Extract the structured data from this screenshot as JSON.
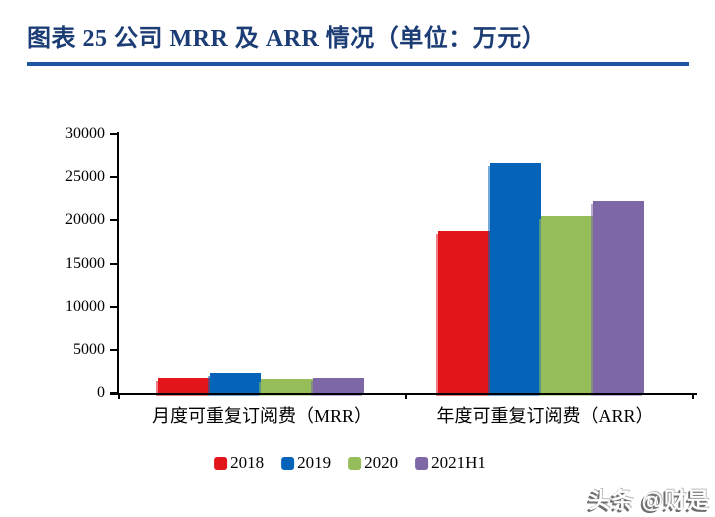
{
  "title": "图表 25 公司 MRR 及 ARR 情况（单位：万元）",
  "watermark": "头条 @财是",
  "chart_data": {
    "type": "bar",
    "title": "图表 25 公司 MRR 及 ARR 情况",
    "unit": "万元",
    "categories": [
      "月度可重复订阅费（MRR）",
      "年度可重复订阅费（ARR）"
    ],
    "series": [
      {
        "name": "2018",
        "color": "#e2141c",
        "values": [
          1700,
          18800
        ]
      },
      {
        "name": "2019",
        "color": "#0564ba",
        "values": [
          2300,
          26600
        ]
      },
      {
        "name": "2020",
        "color": "#95bd59",
        "values": [
          1600,
          20500
        ]
      },
      {
        "name": "2021H1",
        "color": "#7d67a6",
        "values": [
          1750,
          22200
        ]
      }
    ],
    "ylim": [
      0,
      30000
    ],
    "yticks": [
      0,
      5000,
      10000,
      15000,
      20000,
      25000,
      30000
    ],
    "grid": false,
    "legend_position": "bottom"
  }
}
